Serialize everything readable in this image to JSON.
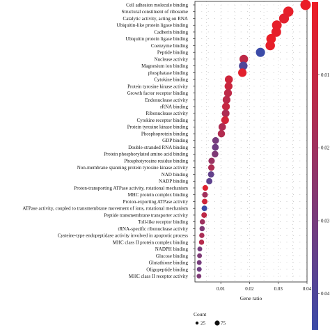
{
  "chart_data": {
    "type": "scatter",
    "xlabel": "Gene ratio",
    "ylabel": "",
    "xlim": [
      0.001,
      0.04
    ],
    "xticks": [
      "0.01",
      "0.02",
      "0.03",
      "0.04"
    ],
    "grid": true,
    "categories": [
      "Cell adhesion molecule binding",
      "Structural constituent of ribosome",
      "Catalytic activity, acting on RNA",
      "Ubiquitin-like protein ligase binding",
      "Cadherin binding",
      "Ubiquitin protein ligase binding",
      "Coenzyme binding",
      "Peptide binding",
      "Nuclease activity",
      "Magnesium ion binding",
      "phosphatase binding",
      "Cytokine binding",
      "Protein tyrosine kinase activity",
      "Growth factor receptor binding",
      "Endonuclease activity",
      "rRNA binding",
      "Ribonuclease activity",
      "Cytokine receptor binding",
      "Protein tyrosine kinase binding",
      "Phosphoprotein binding",
      "GDP binding",
      "Double-stranded RNA binding",
      "Protein phosphorylated amino acid binding",
      "Phosphotyrosine residue binding",
      "Non-membrane spanning protein tyrosine kinase activity",
      "NAD binding",
      "NADP binding",
      "Proton-transporting ATPase activity, rotational mechanism",
      "MHC protein complex binding",
      "Proton-exporting ATPase activity",
      "ATPase activity, coupled to transmembrane movement of ions, rotational mechanism",
      "Peptide transmembrane transporter activity",
      "Toll-like receptor binding",
      "tRNA-specific ribonuclease activity",
      "Cysteine-type endopeptidase activity involved in apoptotic process",
      "MHC class II protein complex binding",
      "NADPH binding",
      "Glucose binding",
      "Glutathione binding",
      "Oligopeptide binding",
      "MHC class II receptor activity"
    ],
    "series": [
      {
        "x": [
          0.0395,
          0.0335,
          0.032,
          0.0295,
          0.0293,
          0.0275,
          0.0272,
          0.0238,
          0.018,
          0.0178,
          0.0175,
          0.0128,
          0.0127,
          0.0125,
          0.012,
          0.0118,
          0.0117,
          0.0115,
          0.0105,
          0.0102,
          0.0082,
          0.0081,
          0.008,
          0.0068,
          0.0067,
          0.0066,
          0.006,
          0.0046,
          0.0045,
          0.0044,
          0.0043,
          0.0042,
          0.0036,
          0.0035,
          0.0034,
          0.0033,
          0.0027,
          0.0026,
          0.0025,
          0.0025,
          0.0024
        ],
        "count": [
          90,
          85,
          80,
          75,
          75,
          72,
          70,
          65,
          55,
          54,
          53,
          45,
          44,
          43,
          42,
          41,
          40,
          40,
          36,
          35,
          28,
          28,
          27,
          23,
          23,
          22,
          21,
          16,
          16,
          15,
          15,
          15,
          13,
          12,
          12,
          12,
          9,
          9,
          9,
          9,
          8
        ],
        "p_adjust": [
          0.001,
          0.002,
          0.003,
          0.002,
          0.002,
          0.001,
          0.002,
          0.045,
          0.012,
          0.04,
          0.003,
          0.008,
          0.009,
          0.012,
          0.013,
          0.01,
          0.016,
          0.007,
          0.016,
          0.015,
          0.03,
          0.032,
          0.028,
          0.021,
          0.016,
          0.035,
          0.036,
          0.004,
          0.019,
          0.008,
          0.045,
          0.012,
          0.02,
          0.028,
          0.017,
          0.014,
          0.03,
          0.028,
          0.03,
          0.032,
          0.028
        ]
      }
    ],
    "colorbar": {
      "ticks": [
        "0.01",
        "0.02",
        "0.03",
        "0.04"
      ],
      "low_color": "#ee1d24",
      "high_color": "#3b4ba8",
      "range": [
        0.0,
        0.045
      ]
    },
    "size_legend": {
      "title": "Count",
      "items": [
        {
          "label": "25",
          "value": 25
        },
        {
          "label": "75",
          "value": 75
        }
      ]
    }
  }
}
